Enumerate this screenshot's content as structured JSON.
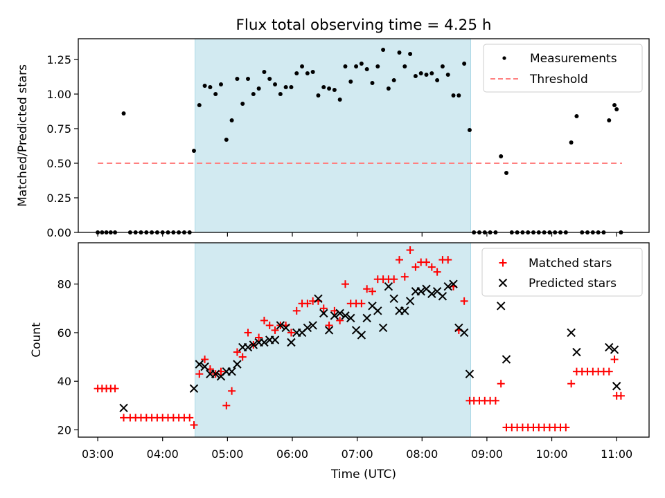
{
  "title": "Flux total observing time = 4.25 h",
  "colors": {
    "span": "#add8e6",
    "threshold": "#ff8080",
    "matched": "#ff0000",
    "predicted": "#000000",
    "measurement": "#000000"
  },
  "chart_data": [
    {
      "type": "scatter",
      "panel": "top",
      "ylabel": "Matched/Predicted stars",
      "xlabel": "",
      "ylim": [
        0,
        1.4
      ],
      "yticks": [
        0.0,
        0.25,
        0.5,
        0.75,
        1.0,
        1.25
      ],
      "yticklabels": [
        "0.00",
        "0.25",
        "0.50",
        "0.75",
        "1.00",
        "1.25"
      ],
      "xlim": [
        "02:42",
        "11:30"
      ],
      "span": [
        "04:30",
        "08:45"
      ],
      "legend": "top-right",
      "threshold": {
        "name": "Threshold",
        "y": 0.5,
        "x": [
          "03:00",
          "11:05"
        ]
      },
      "series": [
        {
          "name": "Measurements",
          "marker": "dot",
          "points": [
            [
              "03:00",
              0
            ],
            [
              "03:04",
              0
            ],
            [
              "03:08",
              0
            ],
            [
              "03:12",
              0
            ],
            [
              "03:16",
              0
            ],
            [
              "03:24",
              0.86
            ],
            [
              "03:30",
              0
            ],
            [
              "03:35",
              0
            ],
            [
              "03:40",
              0
            ],
            [
              "03:45",
              0
            ],
            [
              "03:50",
              0
            ],
            [
              "03:55",
              0
            ],
            [
              "04:00",
              0
            ],
            [
              "04:05",
              0
            ],
            [
              "04:10",
              0
            ],
            [
              "04:15",
              0
            ],
            [
              "04:20",
              0
            ],
            [
              "04:25",
              0
            ],
            [
              "04:29",
              0.59
            ],
            [
              "04:34",
              0.92
            ],
            [
              "04:39",
              1.06
            ],
            [
              "04:44",
              1.05
            ],
            [
              "04:49",
              1.0
            ],
            [
              "04:54",
              1.07
            ],
            [
              "04:59",
              0.67
            ],
            [
              "05:04",
              0.81
            ],
            [
              "05:09",
              1.11
            ],
            [
              "05:14",
              0.93
            ],
            [
              "05:19",
              1.11
            ],
            [
              "05:24",
              1.0
            ],
            [
              "05:29",
              1.04
            ],
            [
              "05:34",
              1.16
            ],
            [
              "05:39",
              1.11
            ],
            [
              "05:44",
              1.07
            ],
            [
              "05:49",
              1.0
            ],
            [
              "05:54",
              1.05
            ],
            [
              "05:59",
              1.05
            ],
            [
              "06:04",
              1.15
            ],
            [
              "06:09",
              1.2
            ],
            [
              "06:14",
              1.15
            ],
            [
              "06:19",
              1.16
            ],
            [
              "06:24",
              0.99
            ],
            [
              "06:29",
              1.05
            ],
            [
              "06:34",
              1.04
            ],
            [
              "06:39",
              1.03
            ],
            [
              "06:44",
              0.96
            ],
            [
              "06:49",
              1.2
            ],
            [
              "06:54",
              1.09
            ],
            [
              "06:59",
              1.2
            ],
            [
              "07:04",
              1.22
            ],
            [
              "07:09",
              1.18
            ],
            [
              "07:14",
              1.08
            ],
            [
              "07:19",
              1.2
            ],
            [
              "07:24",
              1.32
            ],
            [
              "07:29",
              1.04
            ],
            [
              "07:34",
              1.1
            ],
            [
              "07:39",
              1.3
            ],
            [
              "07:44",
              1.2
            ],
            [
              "07:49",
              1.29
            ],
            [
              "07:54",
              1.13
            ],
            [
              "07:59",
              1.15
            ],
            [
              "08:04",
              1.14
            ],
            [
              "08:09",
              1.15
            ],
            [
              "08:14",
              1.1
            ],
            [
              "08:19",
              1.2
            ],
            [
              "08:24",
              1.14
            ],
            [
              "08:29",
              0.99
            ],
            [
              "08:34",
              0.99
            ],
            [
              "08:39",
              1.22
            ],
            [
              "08:44",
              0.74
            ],
            [
              "08:48",
              0
            ],
            [
              "08:53",
              0
            ],
            [
              "08:58",
              0
            ],
            [
              "09:03",
              0
            ],
            [
              "09:08",
              0
            ],
            [
              "09:13",
              0.55
            ],
            [
              "09:18",
              0.43
            ],
            [
              "09:23",
              0
            ],
            [
              "09:28",
              0
            ],
            [
              "09:33",
              0
            ],
            [
              "09:38",
              0
            ],
            [
              "09:43",
              0
            ],
            [
              "09:48",
              0
            ],
            [
              "09:53",
              0
            ],
            [
              "09:58",
              0
            ],
            [
              "10:03",
              0
            ],
            [
              "10:08",
              0
            ],
            [
              "10:13",
              0
            ],
            [
              "10:18",
              0.65
            ],
            [
              "10:23",
              0.84
            ],
            [
              "10:28",
              0
            ],
            [
              "10:33",
              0
            ],
            [
              "10:38",
              0
            ],
            [
              "10:43",
              0
            ],
            [
              "10:48",
              0
            ],
            [
              "10:53",
              0.81
            ],
            [
              "10:58",
              0.92
            ],
            [
              "11:00",
              0.89
            ],
            [
              "11:04",
              0
            ]
          ]
        }
      ]
    },
    {
      "type": "scatter",
      "panel": "bottom",
      "ylabel": "Count",
      "xlabel": "Time (UTC)",
      "ylim": [
        17,
        97
      ],
      "yticks": [
        20,
        40,
        60,
        80
      ],
      "yticklabels": [
        "20",
        "40",
        "60",
        "80"
      ],
      "xlim": [
        "02:42",
        "11:30"
      ],
      "xticks": [
        "03:00",
        "04:00",
        "05:00",
        "06:00",
        "07:00",
        "08:00",
        "09:00",
        "10:00",
        "11:00"
      ],
      "span": [
        "04:30",
        "08:45"
      ],
      "legend": "top-right",
      "series": [
        {
          "name": "Matched stars",
          "marker": "plus",
          "points": [
            [
              "03:00",
              37
            ],
            [
              "03:04",
              37
            ],
            [
              "03:08",
              37
            ],
            [
              "03:12",
              37
            ],
            [
              "03:16",
              37
            ],
            [
              "03:24",
              25
            ],
            [
              "03:30",
              25
            ],
            [
              "03:35",
              25
            ],
            [
              "03:40",
              25
            ],
            [
              "03:45",
              25
            ],
            [
              "03:50",
              25
            ],
            [
              "03:55",
              25
            ],
            [
              "04:00",
              25
            ],
            [
              "04:05",
              25
            ],
            [
              "04:10",
              25
            ],
            [
              "04:15",
              25
            ],
            [
              "04:20",
              25
            ],
            [
              "04:25",
              25
            ],
            [
              "04:29",
              22
            ],
            [
              "04:34",
              43
            ],
            [
              "04:39",
              49
            ],
            [
              "04:44",
              45
            ],
            [
              "04:49",
              43
            ],
            [
              "04:54",
              44
            ],
            [
              "04:59",
              30
            ],
            [
              "05:04",
              36
            ],
            [
              "05:09",
              52
            ],
            [
              "05:14",
              50
            ],
            [
              "05:19",
              60
            ],
            [
              "05:24",
              55
            ],
            [
              "05:29",
              58
            ],
            [
              "05:34",
              65
            ],
            [
              "05:39",
              63
            ],
            [
              "05:44",
              61
            ],
            [
              "05:49",
              63
            ],
            [
              "05:54",
              63
            ],
            [
              "05:59",
              60
            ],
            [
              "06:04",
              69
            ],
            [
              "06:09",
              72
            ],
            [
              "06:14",
              72
            ],
            [
              "06:19",
              73
            ],
            [
              "06:24",
              73
            ],
            [
              "06:29",
              70
            ],
            [
              "06:34",
              63
            ],
            [
              "06:39",
              69
            ],
            [
              "06:44",
              65
            ],
            [
              "06:49",
              80
            ],
            [
              "06:54",
              72
            ],
            [
              "06:59",
              72
            ],
            [
              "07:04",
              72
            ],
            [
              "07:09",
              78
            ],
            [
              "07:14",
              77
            ],
            [
              "07:19",
              82
            ],
            [
              "07:24",
              82
            ],
            [
              "07:29",
              82
            ],
            [
              "07:34",
              82
            ],
            [
              "07:39",
              90
            ],
            [
              "07:44",
              83
            ],
            [
              "07:49",
              94
            ],
            [
              "07:54",
              87
            ],
            [
              "07:59",
              89
            ],
            [
              "08:04",
              89
            ],
            [
              "08:09",
              87
            ],
            [
              "08:14",
              85
            ],
            [
              "08:19",
              90
            ],
            [
              "08:24",
              90
            ],
            [
              "08:29",
              79
            ],
            [
              "08:34",
              61
            ],
            [
              "08:39",
              73
            ],
            [
              "08:44",
              32
            ],
            [
              "08:48",
              32
            ],
            [
              "08:53",
              32
            ],
            [
              "08:58",
              32
            ],
            [
              "09:03",
              32
            ],
            [
              "09:08",
              32
            ],
            [
              "09:13",
              39
            ],
            [
              "09:18",
              21
            ],
            [
              "09:23",
              21
            ],
            [
              "09:28",
              21
            ],
            [
              "09:33",
              21
            ],
            [
              "09:38",
              21
            ],
            [
              "09:43",
              21
            ],
            [
              "09:48",
              21
            ],
            [
              "09:53",
              21
            ],
            [
              "09:58",
              21
            ],
            [
              "10:03",
              21
            ],
            [
              "10:08",
              21
            ],
            [
              "10:13",
              21
            ],
            [
              "10:18",
              39
            ],
            [
              "10:23",
              44
            ],
            [
              "10:28",
              44
            ],
            [
              "10:33",
              44
            ],
            [
              "10:38",
              44
            ],
            [
              "10:43",
              44
            ],
            [
              "10:48",
              44
            ],
            [
              "10:53",
              44
            ],
            [
              "10:58",
              49
            ],
            [
              "11:00",
              34
            ],
            [
              "11:04",
              34
            ]
          ]
        },
        {
          "name": "Predicted stars",
          "marker": "x",
          "points": [
            [
              "03:24",
              29
            ],
            [
              "04:29",
              37
            ],
            [
              "04:34",
              47
            ],
            [
              "04:39",
              46
            ],
            [
              "04:44",
              43
            ],
            [
              "04:49",
              43
            ],
            [
              "04:54",
              42
            ],
            [
              "04:59",
              44
            ],
            [
              "05:04",
              44
            ],
            [
              "05:09",
              47
            ],
            [
              "05:14",
              54
            ],
            [
              "05:19",
              54
            ],
            [
              "05:24",
              55
            ],
            [
              "05:29",
              56
            ],
            [
              "05:34",
              56
            ],
            [
              "05:39",
              57
            ],
            [
              "05:44",
              57
            ],
            [
              "05:49",
              63
            ],
            [
              "05:54",
              62
            ],
            [
              "05:59",
              56
            ],
            [
              "06:04",
              60
            ],
            [
              "06:09",
              60
            ],
            [
              "06:14",
              62
            ],
            [
              "06:19",
              63
            ],
            [
              "06:24",
              74
            ],
            [
              "06:29",
              68
            ],
            [
              "06:34",
              61
            ],
            [
              "06:39",
              67
            ],
            [
              "06:44",
              68
            ],
            [
              "06:49",
              67
            ],
            [
              "06:54",
              66
            ],
            [
              "06:59",
              61
            ],
            [
              "07:04",
              59
            ],
            [
              "07:09",
              66
            ],
            [
              "07:14",
              71
            ],
            [
              "07:19",
              69
            ],
            [
              "07:24",
              62
            ],
            [
              "07:29",
              79
            ],
            [
              "07:34",
              74
            ],
            [
              "07:39",
              69
            ],
            [
              "07:44",
              69
            ],
            [
              "07:49",
              73
            ],
            [
              "07:54",
              77
            ],
            [
              "07:59",
              77
            ],
            [
              "08:04",
              78
            ],
            [
              "08:09",
              76
            ],
            [
              "08:14",
              77
            ],
            [
              "08:19",
              75
            ],
            [
              "08:24",
              79
            ],
            [
              "08:29",
              80
            ],
            [
              "08:34",
              62
            ],
            [
              "08:39",
              60
            ],
            [
              "08:44",
              43
            ],
            [
              "09:13",
              71
            ],
            [
              "09:18",
              49
            ],
            [
              "10:18",
              60
            ],
            [
              "10:23",
              52
            ],
            [
              "10:53",
              54
            ],
            [
              "10:58",
              53
            ],
            [
              "11:00",
              38
            ]
          ]
        }
      ]
    }
  ]
}
